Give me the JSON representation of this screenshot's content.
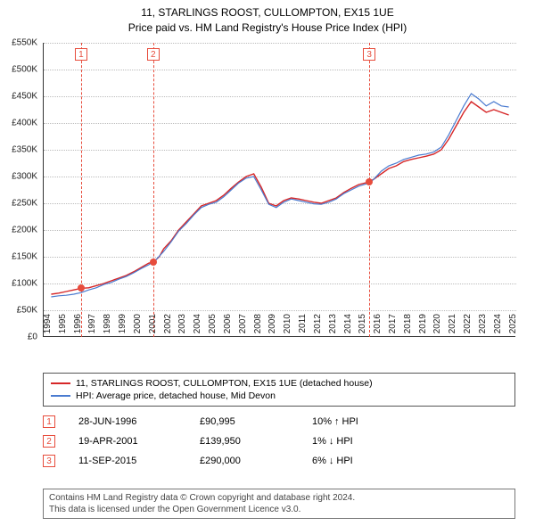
{
  "title": {
    "line1": "11, STARLINGS ROOST, CULLOMPTON, EX15 1UE",
    "line2": "Price paid vs. HM Land Registry's House Price Index (HPI)"
  },
  "chart": {
    "type": "line",
    "background_color": "#ffffff",
    "grid_color": "#bbbbbb",
    "axis_color": "#333333",
    "xlim": [
      1994,
      2025.5
    ],
    "ylim": [
      0,
      550000
    ],
    "ytick_step": 50000,
    "yticks": [
      "£0",
      "£50K",
      "£100K",
      "£150K",
      "£200K",
      "£250K",
      "£300K",
      "£350K",
      "£400K",
      "£450K",
      "£500K",
      "£550K"
    ],
    "xticks": [
      "1994",
      "1995",
      "1996",
      "1997",
      "1998",
      "1999",
      "2000",
      "2001",
      "2002",
      "2003",
      "2004",
      "2005",
      "2006",
      "2007",
      "2008",
      "2009",
      "2010",
      "2011",
      "2012",
      "2013",
      "2014",
      "2015",
      "2016",
      "2017",
      "2018",
      "2019",
      "2020",
      "2021",
      "2022",
      "2023",
      "2024",
      "2025"
    ],
    "label_fontsize": 10,
    "title_fontsize": 12,
    "series": [
      {
        "name": "property",
        "color": "#d62728",
        "width": 1.4,
        "points": [
          [
            1994.5,
            80000
          ],
          [
            1995,
            82000
          ],
          [
            1995.5,
            85000
          ],
          [
            1996,
            88000
          ],
          [
            1996.49,
            90995
          ],
          [
            1997,
            92000
          ],
          [
            1997.5,
            96000
          ],
          [
            1998,
            100000
          ],
          [
            1998.5,
            105000
          ],
          [
            1999,
            110000
          ],
          [
            1999.5,
            115000
          ],
          [
            2000,
            122000
          ],
          [
            2000.5,
            130000
          ],
          [
            2001,
            138000
          ],
          [
            2001.3,
            139950
          ],
          [
            2001.7,
            150000
          ],
          [
            2002,
            165000
          ],
          [
            2002.5,
            180000
          ],
          [
            2003,
            200000
          ],
          [
            2003.5,
            215000
          ],
          [
            2004,
            230000
          ],
          [
            2004.5,
            245000
          ],
          [
            2005,
            250000
          ],
          [
            2005.5,
            255000
          ],
          [
            2006,
            265000
          ],
          [
            2006.5,
            278000
          ],
          [
            2007,
            290000
          ],
          [
            2007.5,
            300000
          ],
          [
            2008,
            305000
          ],
          [
            2008.5,
            280000
          ],
          [
            2009,
            250000
          ],
          [
            2009.5,
            245000
          ],
          [
            2010,
            255000
          ],
          [
            2010.5,
            260000
          ],
          [
            2011,
            258000
          ],
          [
            2011.5,
            255000
          ],
          [
            2012,
            252000
          ],
          [
            2012.5,
            250000
          ],
          [
            2013,
            255000
          ],
          [
            2013.5,
            260000
          ],
          [
            2014,
            270000
          ],
          [
            2014.5,
            278000
          ],
          [
            2015,
            285000
          ],
          [
            2015.7,
            290000
          ],
          [
            2016,
            295000
          ],
          [
            2016.5,
            305000
          ],
          [
            2017,
            315000
          ],
          [
            2017.5,
            320000
          ],
          [
            2018,
            328000
          ],
          [
            2018.5,
            332000
          ],
          [
            2019,
            335000
          ],
          [
            2019.5,
            338000
          ],
          [
            2020,
            342000
          ],
          [
            2020.5,
            350000
          ],
          [
            2021,
            370000
          ],
          [
            2021.5,
            395000
          ],
          [
            2022,
            420000
          ],
          [
            2022.5,
            440000
          ],
          [
            2023,
            430000
          ],
          [
            2023.5,
            420000
          ],
          [
            2024,
            425000
          ],
          [
            2024.5,
            420000
          ],
          [
            2025,
            415000
          ]
        ]
      },
      {
        "name": "hpi",
        "color": "#4a7bd0",
        "width": 1.2,
        "points": [
          [
            1994.5,
            75000
          ],
          [
            1995,
            77000
          ],
          [
            1995.5,
            78000
          ],
          [
            1996,
            80000
          ],
          [
            1996.5,
            83000
          ],
          [
            1997,
            88000
          ],
          [
            1997.5,
            92000
          ],
          [
            1998,
            98000
          ],
          [
            1998.5,
            102000
          ],
          [
            1999,
            108000
          ],
          [
            1999.5,
            113000
          ],
          [
            2000,
            120000
          ],
          [
            2000.5,
            128000
          ],
          [
            2001,
            135000
          ],
          [
            2001.5,
            145000
          ],
          [
            2002,
            160000
          ],
          [
            2002.5,
            178000
          ],
          [
            2003,
            198000
          ],
          [
            2003.5,
            212000
          ],
          [
            2004,
            228000
          ],
          [
            2004.5,
            242000
          ],
          [
            2005,
            248000
          ],
          [
            2005.5,
            252000
          ],
          [
            2006,
            262000
          ],
          [
            2006.5,
            275000
          ],
          [
            2007,
            288000
          ],
          [
            2007.5,
            297000
          ],
          [
            2008,
            300000
          ],
          [
            2008.5,
            275000
          ],
          [
            2009,
            248000
          ],
          [
            2009.5,
            242000
          ],
          [
            2010,
            252000
          ],
          [
            2010.5,
            258000
          ],
          [
            2011,
            255000
          ],
          [
            2011.5,
            252000
          ],
          [
            2012,
            249000
          ],
          [
            2012.5,
            248000
          ],
          [
            2013,
            252000
          ],
          [
            2013.5,
            258000
          ],
          [
            2014,
            268000
          ],
          [
            2014.5,
            275000
          ],
          [
            2015,
            282000
          ],
          [
            2015.7,
            288000
          ],
          [
            2016,
            295000
          ],
          [
            2016.5,
            310000
          ],
          [
            2017,
            320000
          ],
          [
            2017.5,
            325000
          ],
          [
            2018,
            332000
          ],
          [
            2018.5,
            336000
          ],
          [
            2019,
            340000
          ],
          [
            2019.5,
            342000
          ],
          [
            2020,
            346000
          ],
          [
            2020.5,
            355000
          ],
          [
            2021,
            378000
          ],
          [
            2021.5,
            405000
          ],
          [
            2022,
            432000
          ],
          [
            2022.5,
            455000
          ],
          [
            2023,
            445000
          ],
          [
            2023.5,
            432000
          ],
          [
            2024,
            440000
          ],
          [
            2024.5,
            432000
          ],
          [
            2025,
            430000
          ]
        ]
      }
    ],
    "events": [
      {
        "n": "1",
        "year": 1996.49,
        "price": 90995
      },
      {
        "n": "2",
        "year": 2001.3,
        "price": 139950
      },
      {
        "n": "3",
        "year": 2015.7,
        "price": 290000
      }
    ]
  },
  "legend": {
    "items": [
      {
        "color": "#d62728",
        "label": "11, STARLINGS ROOST, CULLOMPTON, EX15 1UE (detached house)"
      },
      {
        "color": "#4a7bd0",
        "label": "HPI: Average price, detached house, Mid Devon"
      }
    ]
  },
  "event_rows": [
    {
      "n": "1",
      "date": "28-JUN-1996",
      "price": "£90,995",
      "diff": "10%",
      "arrow": "↑",
      "suffix": "HPI"
    },
    {
      "n": "2",
      "date": "19-APR-2001",
      "price": "£139,950",
      "diff": "1%",
      "arrow": "↓",
      "suffix": "HPI"
    },
    {
      "n": "3",
      "date": "11-SEP-2015",
      "price": "£290,000",
      "diff": "6%",
      "arrow": "↓",
      "suffix": "HPI"
    }
  ],
  "footer": {
    "line1": "Contains HM Land Registry data © Crown copyright and database right 2024.",
    "line2": "This data is licensed under the Open Government Licence v3.0."
  }
}
